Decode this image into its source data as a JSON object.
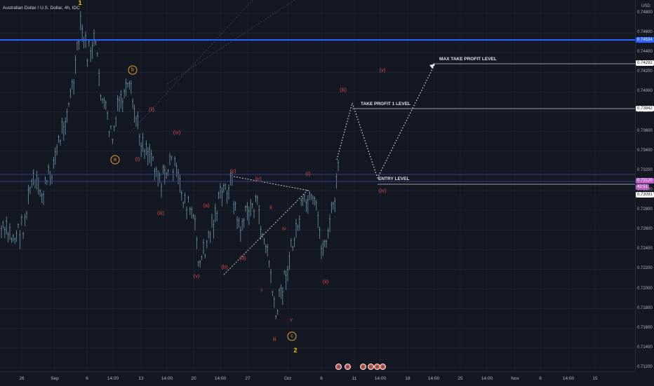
{
  "chart_data": {
    "type": "candlestick",
    "title": "Australian Dollar / U.S. Dollar, 4h, IDC",
    "currency": "USD",
    "y_ticks": [
      "0.74800",
      "0.74600",
      "0.74400",
      "0.74200",
      "0.74000",
      "0.73800",
      "0.73600",
      "0.73400",
      "0.73200",
      "0.73000",
      "0.72800",
      "0.72600",
      "0.72400",
      "0.72200",
      "0.72000",
      "0.71800",
      "0.71600",
      "0.71400",
      "0.71200"
    ],
    "x_ticks": [
      "26",
      "Sep",
      "6",
      "14:00",
      "13",
      "14:00",
      "20",
      "14:00",
      "27",
      "Oct",
      "6",
      "11",
      "14:00",
      "18",
      "14:00",
      "25",
      "14:00",
      "Nov",
      "8",
      "14:00",
      "15"
    ],
    "price_pills": {
      "blue_line": "0.74534",
      "max_tp": "0.74292",
      "tp1": "0.73842",
      "current": "0.73120",
      "countdown": "42:51",
      "entry": "0.73091"
    },
    "levels": {
      "max_take_profit": "MAX TAKE PROFIT LEVEL",
      "take_profit_1": "TAKE PROFIT 1 LEVEL",
      "entry": "ENTRY LEVEL"
    },
    "wave_labels_red": [
      "(ii)",
      "(iv)",
      "(i)",
      "(iii)",
      "(v)",
      "(a)",
      "(b)",
      "(c)",
      "(d)",
      "(e)",
      "ii",
      "i",
      "iv",
      "iii",
      "v",
      "(i)",
      "(ii)",
      "(iii)",
      "(iv)",
      "(v)"
    ],
    "wave_labels_orange": [
      "a",
      "b",
      "c"
    ],
    "wave_labels_yellow": [
      "1",
      "2"
    ],
    "grid": true,
    "chart_style": "dark"
  }
}
